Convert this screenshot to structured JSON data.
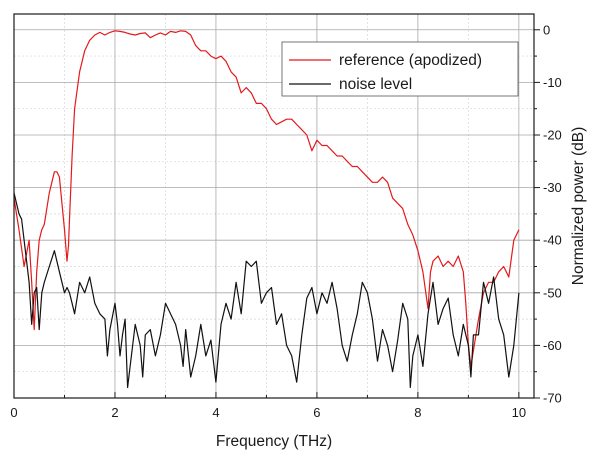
{
  "chart_data": {
    "type": "line",
    "title": "",
    "xlabel": "Frequency (THz)",
    "ylabel": "Normalized power (dB)",
    "xlim": [
      0,
      10.3
    ],
    "ylim": [
      -70,
      3
    ],
    "x_ticks": [
      0,
      2,
      4,
      6,
      8,
      10
    ],
    "y_ticks": [
      0,
      -10,
      -20,
      -30,
      -40,
      -50,
      -60,
      -70
    ],
    "y_axis_side": "right",
    "grid": true,
    "grid_minor": true,
    "legend_position": "top-right",
    "series": [
      {
        "name": "reference (apodized)",
        "color": "#e31a1c",
        "x": [
          0,
          0.1,
          0.2,
          0.3,
          0.35,
          0.4,
          0.45,
          0.5,
          0.55,
          0.6,
          0.7,
          0.8,
          0.85,
          0.9,
          1.0,
          1.05,
          1.08,
          1.1,
          1.15,
          1.2,
          1.3,
          1.4,
          1.5,
          1.6,
          1.7,
          1.8,
          1.9,
          2.0,
          2.1,
          2.2,
          2.3,
          2.4,
          2.5,
          2.6,
          2.7,
          2.8,
          2.9,
          3.0,
          3.1,
          3.2,
          3.3,
          3.4,
          3.5,
          3.6,
          3.7,
          3.8,
          3.9,
          4.0,
          4.1,
          4.2,
          4.3,
          4.4,
          4.5,
          4.6,
          4.7,
          4.8,
          4.9,
          5.0,
          5.1,
          5.2,
          5.3,
          5.4,
          5.5,
          5.6,
          5.7,
          5.8,
          5.9,
          6.0,
          6.1,
          6.2,
          6.3,
          6.4,
          6.5,
          6.6,
          6.7,
          6.8,
          6.9,
          7.0,
          7.1,
          7.2,
          7.3,
          7.4,
          7.5,
          7.6,
          7.7,
          7.8,
          7.9,
          8.0,
          8.1,
          8.2,
          8.25,
          8.3,
          8.4,
          8.5,
          8.6,
          8.7,
          8.8,
          8.9,
          8.95,
          9.0,
          9.05,
          9.1,
          9.2,
          9.3,
          9.4,
          9.5,
          9.6,
          9.7,
          9.8,
          9.9,
          10.0
        ],
        "values": [
          -32,
          -38,
          -45,
          -40,
          -48,
          -57,
          -46,
          -40,
          -38,
          -37,
          -31,
          -27,
          -27,
          -28,
          -38,
          -44,
          -41,
          -36,
          -24,
          -15,
          -8,
          -4,
          -2,
          -1,
          -0.5,
          -1,
          -0.5,
          -0.2,
          -0.3,
          -0.5,
          -0.8,
          -1,
          -0.7,
          -0.6,
          -1.5,
          -1,
          -0.6,
          -1,
          -0.3,
          -0.5,
          -0.2,
          -0.3,
          -1,
          -3,
          -4,
          -4,
          -5,
          -5.5,
          -5,
          -6,
          -8,
          -9,
          -12,
          -11,
          -12,
          -14,
          -14,
          -15,
          -17,
          -18,
          -17.5,
          -17,
          -17,
          -18,
          -19,
          -20,
          -23,
          -21,
          -22,
          -22,
          -23,
          -24,
          -24,
          -25,
          -26,
          -26,
          -27,
          -28,
          -29,
          -29,
          -28,
          -29,
          -32,
          -33,
          -34,
          -37,
          -39,
          -42,
          -46,
          -53,
          -46,
          -44,
          -43,
          -45,
          -44,
          -45,
          -43,
          -46,
          -52,
          -60,
          -64,
          -61,
          -55,
          -50,
          -48,
          -48,
          -46,
          -45,
          -47,
          -40,
          -38
        ]
      },
      {
        "name": "noise level",
        "color": "#111111",
        "x": [
          0,
          0.05,
          0.1,
          0.15,
          0.2,
          0.25,
          0.3,
          0.35,
          0.4,
          0.45,
          0.5,
          0.55,
          0.6,
          0.7,
          0.8,
          0.9,
          1.0,
          1.05,
          1.1,
          1.15,
          1.2,
          1.3,
          1.4,
          1.5,
          1.6,
          1.7,
          1.8,
          1.85,
          1.9,
          2.0,
          2.05,
          2.1,
          2.15,
          2.2,
          2.25,
          2.3,
          2.4,
          2.5,
          2.55,
          2.6,
          2.7,
          2.8,
          2.9,
          3.0,
          3.1,
          3.2,
          3.3,
          3.35,
          3.4,
          3.5,
          3.6,
          3.7,
          3.8,
          3.9,
          4.0,
          4.1,
          4.2,
          4.3,
          4.4,
          4.5,
          4.6,
          4.7,
          4.8,
          4.9,
          5.0,
          5.1,
          5.2,
          5.3,
          5.4,
          5.5,
          5.6,
          5.7,
          5.8,
          5.9,
          6.0,
          6.1,
          6.2,
          6.3,
          6.4,
          6.5,
          6.6,
          6.7,
          6.8,
          6.9,
          7.0,
          7.1,
          7.2,
          7.3,
          7.4,
          7.5,
          7.6,
          7.7,
          7.8,
          7.85,
          7.9,
          8.0,
          8.1,
          8.2,
          8.3,
          8.4,
          8.5,
          8.6,
          8.7,
          8.8,
          8.9,
          9.0,
          9.05,
          9.1,
          9.2,
          9.3,
          9.4,
          9.5,
          9.6,
          9.7,
          9.8,
          9.9,
          10.0
        ],
        "values": [
          -31,
          -33,
          -35,
          -36,
          -40,
          -44,
          -48,
          -56,
          -50,
          -49,
          -57,
          -50,
          -48,
          -45,
          -42,
          -46,
          -50,
          -49,
          -50,
          -52,
          -54,
          -48,
          -50,
          -47,
          -52,
          -54,
          -55,
          -62,
          -57,
          -52,
          -56,
          -62,
          -58,
          -55,
          -68,
          -64,
          -56,
          -60,
          -66,
          -58,
          -57,
          -62,
          -58,
          -52,
          -54,
          -56,
          -60,
          -64,
          -57,
          -66,
          -62,
          -56,
          -62,
          -59,
          -67,
          -56,
          -52,
          -55,
          -48,
          -54,
          -44,
          -45,
          -44,
          -52,
          -50,
          -49,
          -56,
          -54,
          -60,
          -62,
          -67,
          -58,
          -51,
          -49,
          -54,
          -50,
          -52,
          -48,
          -53,
          -60,
          -63,
          -58,
          -54,
          -48,
          -50,
          -55,
          -63,
          -57,
          -60,
          -65,
          -59,
          -52,
          -55,
          -68,
          -62,
          -58,
          -64,
          -54,
          -48,
          -56,
          -53,
          -51,
          -58,
          -62,
          -56,
          -60,
          -66,
          -58,
          -58,
          -48,
          -52,
          -47,
          -55,
          -58,
          -66,
          -60,
          -50
        ]
      }
    ]
  }
}
